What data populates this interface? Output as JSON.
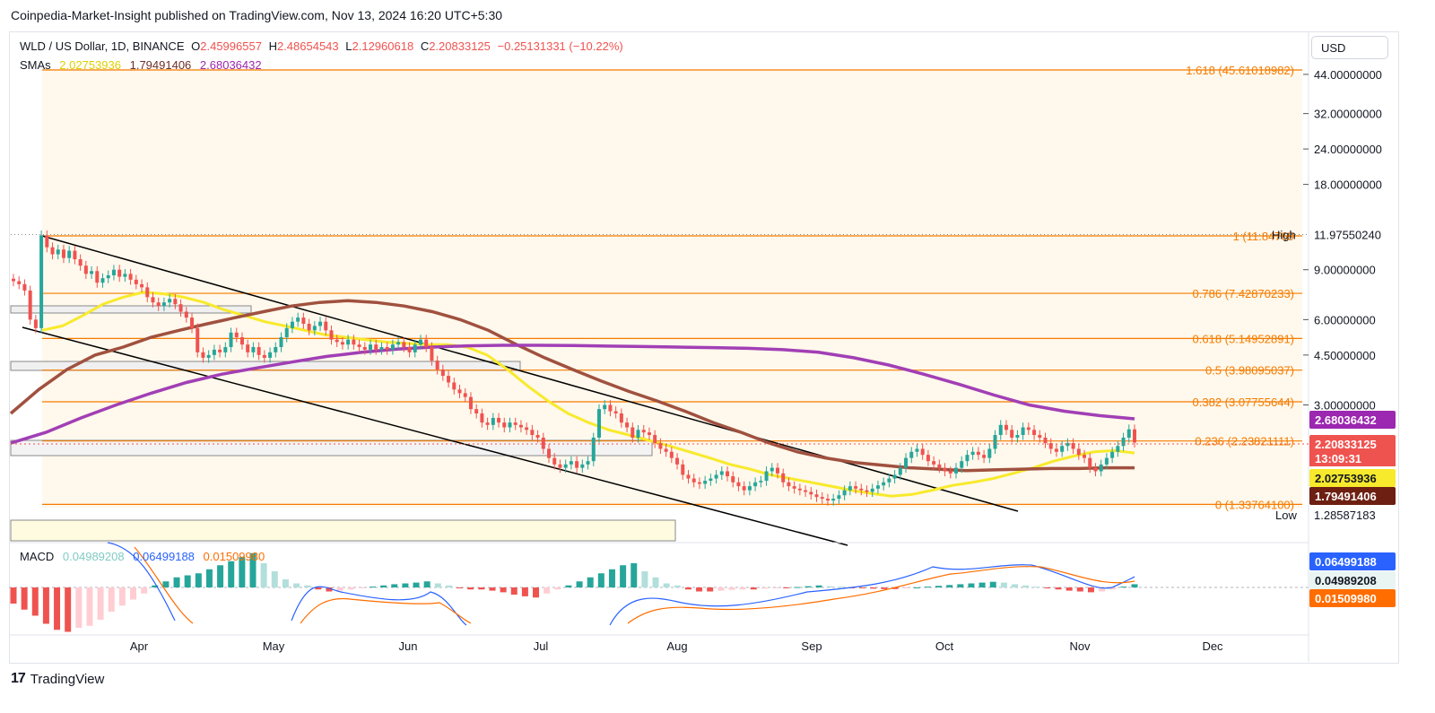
{
  "header": {
    "publisher_line": "Coinpedia-Market-Insight published on TradingView.com, Nov 13, 2024 16:20 UTC+5:30"
  },
  "legend": {
    "symbol": "WLD / US Dollar, 1D, BINANCE",
    "o_label": "O",
    "o_value": "2.45996557",
    "h_label": "H",
    "h_value": "2.48654543",
    "l_label": "L",
    "l_value": "2.12960618",
    "c_label": "C",
    "c_value": "2.20833125",
    "change": "−0.25131331 (−10.22%)",
    "sma_label": "SMAs",
    "sma1": "2.02753936",
    "sma2": "1.79491406",
    "sma3": "2.68036432"
  },
  "currency_button": "USD",
  "macd_legend": {
    "label": "MACD",
    "v1": "0.04989208",
    "v2": "0.06499188",
    "v3": "0.01509980"
  },
  "footer": {
    "logo": "17",
    "brand": "TradingView"
  },
  "colors": {
    "up": "#26a69a",
    "down": "#ef5350",
    "fib": "#f57c00",
    "sma_fast": "#f5e400",
    "sma_mid": "#9c4a3c",
    "sma_slow": "#9c3fb0",
    "channel": "#000000",
    "fib_fill": "#fff8ec"
  },
  "chart_data": {
    "type": "candlestick",
    "title": "WLD / US Dollar, 1D, BINANCE",
    "y_scale": "log",
    "x_month_labels": [
      "Apr",
      "May",
      "Jun",
      "Jul",
      "Aug",
      "Sep",
      "Oct",
      "Nov",
      "Dec"
    ],
    "y_tick_labels": [
      "44.00000000",
      "32.00000000",
      "24.00000000",
      "18.00000000",
      "9.00000000",
      "6.00000000",
      "4.50000000",
      "3.00000000"
    ],
    "y_ticks": [
      44,
      32,
      24,
      18,
      9,
      6,
      4.5,
      3
    ],
    "fib_levels": [
      {
        "ratio": "1.618",
        "value": "45.61018982",
        "text": "1.618 (45.61018982)"
      },
      {
        "ratio": "1",
        "value": "11.84769",
        "text": "1 (11.84769"
      },
      {
        "ratio": "0.786",
        "value": "7.42870233",
        "text": "0.786 (7.42870233)"
      },
      {
        "ratio": "0.618",
        "value": "5.14952891",
        "text": "0.618 (5.14952891)"
      },
      {
        "ratio": "0.5",
        "value": "3.98095037",
        "text": "0.5 (3.98095037)"
      },
      {
        "ratio": "0.382",
        "value": "3.07755644",
        "text": "0.382 (3.07755644)"
      },
      {
        "ratio": "0.236",
        "value": "2.23821111",
        "text": "0.236 (2.23821111)"
      },
      {
        "ratio": "0",
        "value": "1.33764",
        "text": "0 (1.33764100)"
      }
    ],
    "price_tags": {
      "high_label": "High",
      "high_value": "11.97550240",
      "low_label": "Low",
      "low_value": "1.28587183",
      "sma_slow": "2.68036432",
      "close": "2.20833125",
      "countdown": "13:09:31",
      "sma_fast": "2.02753936",
      "sma_mid": "1.79491406"
    },
    "macd_tags": {
      "signal": "0.06499188",
      "histogram": "0.04989208",
      "macd": "0.01509980"
    },
    "closes": [
      8.2,
      8.0,
      7.6,
      6.0,
      5.6,
      11.9,
      10.8,
      10.2,
      10.6,
      9.9,
      10.5,
      9.8,
      9.3,
      8.7,
      8.9,
      8.1,
      8.4,
      8.6,
      9.0,
      8.5,
      8.7,
      8.3,
      8.0,
      7.8,
      7.2,
      6.9,
      6.7,
      6.9,
      7.1,
      6.8,
      6.4,
      6.1,
      5.6,
      4.6,
      4.4,
      4.5,
      4.7,
      4.6,
      4.8,
      5.4,
      5.2,
      4.9,
      4.6,
      4.8,
      4.5,
      4.4,
      4.6,
      4.8,
      5.2,
      5.6,
      5.9,
      6.1,
      5.8,
      5.5,
      5.7,
      5.9,
      5.5,
      5.1,
      5.0,
      4.9,
      5.1,
      4.9,
      4.8,
      4.7,
      4.9,
      4.7,
      4.8,
      4.7,
      4.9,
      5.0,
      4.8,
      4.6,
      4.9,
      5.1,
      4.8,
      4.3,
      4.0,
      3.8,
      3.6,
      3.4,
      3.3,
      3.2,
      2.9,
      2.8,
      2.6,
      2.55,
      2.7,
      2.6,
      2.5,
      2.6,
      2.55,
      2.5,
      2.45,
      2.35,
      2.3,
      2.1,
      1.95,
      1.85,
      1.8,
      1.85,
      1.9,
      1.8,
      1.85,
      1.9,
      2.3,
      2.9,
      3.0,
      2.85,
      2.8,
      2.6,
      2.5,
      2.3,
      2.45,
      2.4,
      2.35,
      2.2,
      2.1,
      2.05,
      1.95,
      1.85,
      1.7,
      1.65,
      1.6,
      1.58,
      1.62,
      1.65,
      1.7,
      1.75,
      1.68,
      1.6,
      1.55,
      1.5,
      1.55,
      1.6,
      1.62,
      1.75,
      1.8,
      1.72,
      1.6,
      1.55,
      1.52,
      1.5,
      1.48,
      1.45,
      1.42,
      1.4,
      1.38,
      1.4,
      1.44,
      1.5,
      1.55,
      1.52,
      1.5,
      1.48,
      1.52,
      1.56,
      1.6,
      1.65,
      1.7,
      1.8,
      1.95,
      2.05,
      2.1,
      2.0,
      1.9,
      1.85,
      1.8,
      1.75,
      1.72,
      1.8,
      1.9,
      2.0,
      2.05,
      2.0,
      1.95,
      2.1,
      2.35,
      2.55,
      2.45,
      2.3,
      2.35,
      2.5,
      2.45,
      2.35,
      2.3,
      2.2,
      2.1,
      2.05,
      2.15,
      2.2,
      2.1,
      2.0,
      1.95,
      1.8,
      1.75,
      1.85,
      1.95,
      2.05,
      2.15,
      2.3,
      2.46,
      2.21
    ],
    "sma_fast": [
      5.5,
      5.7,
      6.2,
      6.8,
      7.2,
      7.5,
      7.4,
      7.2,
      6.9,
      6.5,
      6.2,
      5.9,
      5.7,
      5.5,
      5.3,
      5.2,
      5.1,
      5.0,
      4.95,
      4.9,
      4.9,
      4.8,
      4.5,
      4.0,
      3.5,
      3.1,
      2.8,
      2.6,
      2.45,
      2.35,
      2.25,
      2.15,
      2.05,
      1.95,
      1.85,
      1.78,
      1.7,
      1.65,
      1.6,
      1.55,
      1.5,
      1.46,
      1.43,
      1.45,
      1.5,
      1.56,
      1.6,
      1.65,
      1.72,
      1.8,
      1.9,
      1.98,
      2.05,
      2.07,
      2.03
    ],
    "sma_mid": [
      2.8,
      3.4,
      4.0,
      4.5,
      4.8,
      5.2,
      5.5,
      5.8,
      6.1,
      6.4,
      6.7,
      6.9,
      7.0,
      6.9,
      6.7,
      6.4,
      6.0,
      5.5,
      4.9,
      4.4,
      4.0,
      3.65,
      3.35,
      3.1,
      2.85,
      2.6,
      2.4,
      2.2,
      2.05,
      1.95,
      1.88,
      1.84,
      1.8,
      1.78,
      1.76,
      1.77,
      1.78,
      1.79,
      1.79,
      1.8,
      1.8
    ],
    "sma_slow": [
      2.2,
      2.4,
      2.7,
      3.0,
      3.3,
      3.6,
      3.85,
      4.05,
      4.25,
      4.45,
      4.6,
      4.72,
      4.8,
      4.85,
      4.87,
      4.87,
      4.86,
      4.84,
      4.82,
      4.8,
      4.78,
      4.75,
      4.7,
      4.6,
      4.4,
      4.15,
      3.85,
      3.55,
      3.25,
      3.0,
      2.85,
      2.75,
      2.68
    ],
    "macd_histogram": [
      -0.4,
      -0.55,
      -0.7,
      -0.9,
      -1.05,
      -1.1,
      -1.0,
      -0.95,
      -0.8,
      -0.6,
      -0.45,
      -0.3,
      -0.15,
      0.05,
      0.15,
      0.25,
      0.3,
      0.35,
      0.45,
      0.55,
      0.65,
      0.75,
      0.85,
      0.6,
      0.4,
      0.2,
      0.1,
      0.05,
      -0.05,
      -0.1,
      -0.08,
      -0.05,
      -0.02,
      0.02,
      0.05,
      0.08,
      0.1,
      0.12,
      0.15,
      0.1,
      0.05,
      -0.02,
      -0.05,
      -0.05,
      -0.08,
      -0.12,
      -0.18,
      -0.22,
      -0.25,
      -0.15,
      -0.05,
      0.05,
      0.15,
      0.25,
      0.35,
      0.45,
      0.55,
      0.6,
      0.4,
      0.25,
      0.1,
      0.05,
      -0.05,
      -0.1,
      -0.1,
      -0.08,
      -0.06,
      -0.05,
      -0.05,
      -0.03,
      -0.02,
      -0.02,
      0.01,
      0.03,
      0.05,
      0.03,
      0.02,
      -0.01,
      -0.02,
      -0.03,
      -0.04,
      -0.04,
      -0.02,
      0.0,
      0.02,
      0.04,
      0.06,
      0.08,
      0.1,
      0.12,
      0.14,
      0.12,
      0.08,
      0.05,
      0.02,
      -0.02,
      -0.05,
      -0.08,
      -0.1,
      -0.12,
      -0.1,
      -0.05,
      0.02,
      0.08
    ]
  }
}
